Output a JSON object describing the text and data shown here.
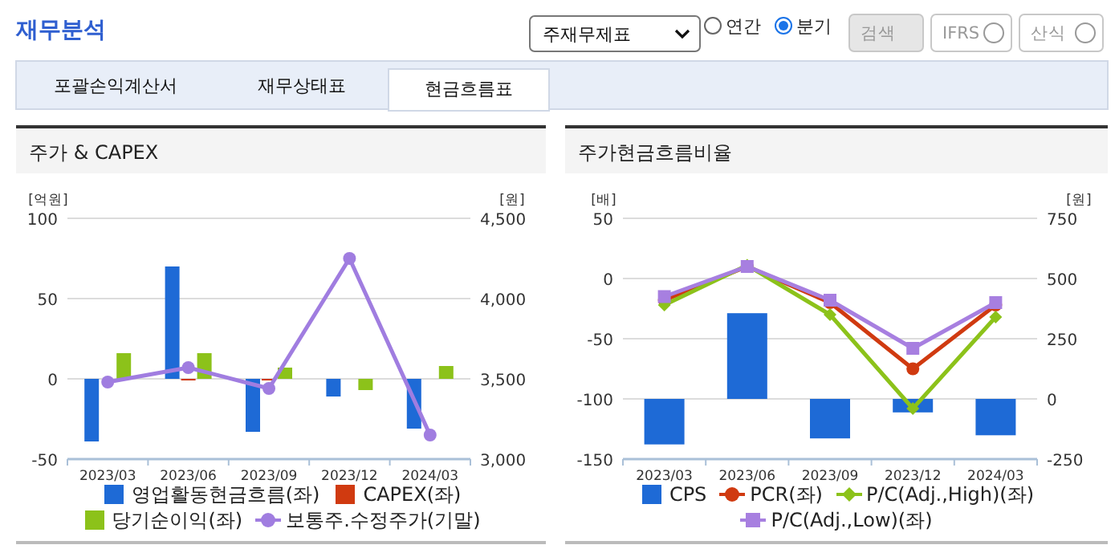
{
  "chart_data": [
    {
      "type": "other",
      "annotations": [
        "재무분석",
        "주재무제표",
        "연간",
        "분기",
        "검색",
        "IFRS",
        "산식",
        "포괄손익계산서",
        "재무상태표",
        "현금흐름표"
      ]
    },
    {
      "type": "bar",
      "title": "주가 & CAPEX",
      "categories": [
        "2023/03",
        "2023/06",
        "2023/09",
        "2023/12",
        "2024/03"
      ],
      "ylabel": "[억원]",
      "y2label": "[원]",
      "ylim": [
        -50,
        100
      ],
      "yticks": [
        -50,
        0,
        50,
        100
      ],
      "y2lim": [
        3000,
        4500
      ],
      "y2ticks": [
        {
          "value": 3000,
          "label": "3,000"
        },
        {
          "value": 3500,
          "label": "3,500"
        },
        {
          "value": 4000,
          "label": "4,000"
        },
        {
          "value": 4500,
          "label": "4,500"
        }
      ],
      "grid": "y",
      "legend": "bottom",
      "series": [
        {
          "name": "영업활동현금흐름(좌)",
          "type": "bar",
          "color": "#1e6ad6",
          "values": [
            -39,
            70,
            -33,
            -11,
            -31
          ]
        },
        {
          "name": "CAPEX(좌)",
          "type": "bar",
          "color": "#d03a10",
          "values": [
            0,
            -1,
            -1,
            0,
            0
          ]
        },
        {
          "name": "당기순이익(좌)",
          "type": "bar",
          "color": "#8cc21a",
          "values": [
            16,
            16,
            7,
            -7,
            8
          ]
        },
        {
          "name": "보통주.수정주가(기말)",
          "type": "line",
          "axis": "y2",
          "color": "#a07de0",
          "marker": "circle",
          "values": [
            3480,
            3570,
            3440,
            4250,
            3150
          ]
        }
      ]
    },
    {
      "type": "bar",
      "title": "주가현금흐름비율",
      "categories": [
        "2023/03",
        "2023/06",
        "2023/09",
        "2023/12",
        "2024/03"
      ],
      "ylabel": "[배]",
      "y2label": "[원]",
      "ylim": [
        -150,
        50
      ],
      "yticks": [
        -150,
        -100,
        -50,
        0,
        50
      ],
      "y2lim": [
        -250,
        750
      ],
      "y2ticks": [
        -250,
        0,
        250,
        500,
        750
      ],
      "grid": "y",
      "legend": "bottom",
      "series": [
        {
          "name": "CPS",
          "type": "bar",
          "axis": "y2",
          "color": "#1e6ad6",
          "values": [
            -189,
            356,
            -164,
            -56,
            -151
          ]
        },
        {
          "name": "PCR(좌)",
          "type": "line",
          "color": "#d03a10",
          "marker": "circle",
          "values": [
            -18,
            10,
            -20,
            -75,
            -22
          ]
        },
        {
          "name": "P/C(Adj.,High)(좌)",
          "type": "line",
          "color": "#8cc21a",
          "marker": "diamond",
          "values": [
            -22,
            11,
            -30,
            -108,
            -32
          ]
        },
        {
          "name": "P/C(Adj.,Low)(좌)",
          "type": "line",
          "color": "#a77fe0",
          "marker": "square",
          "values": [
            -15,
            10,
            -18,
            -58,
            -20
          ]
        }
      ]
    }
  ]
}
